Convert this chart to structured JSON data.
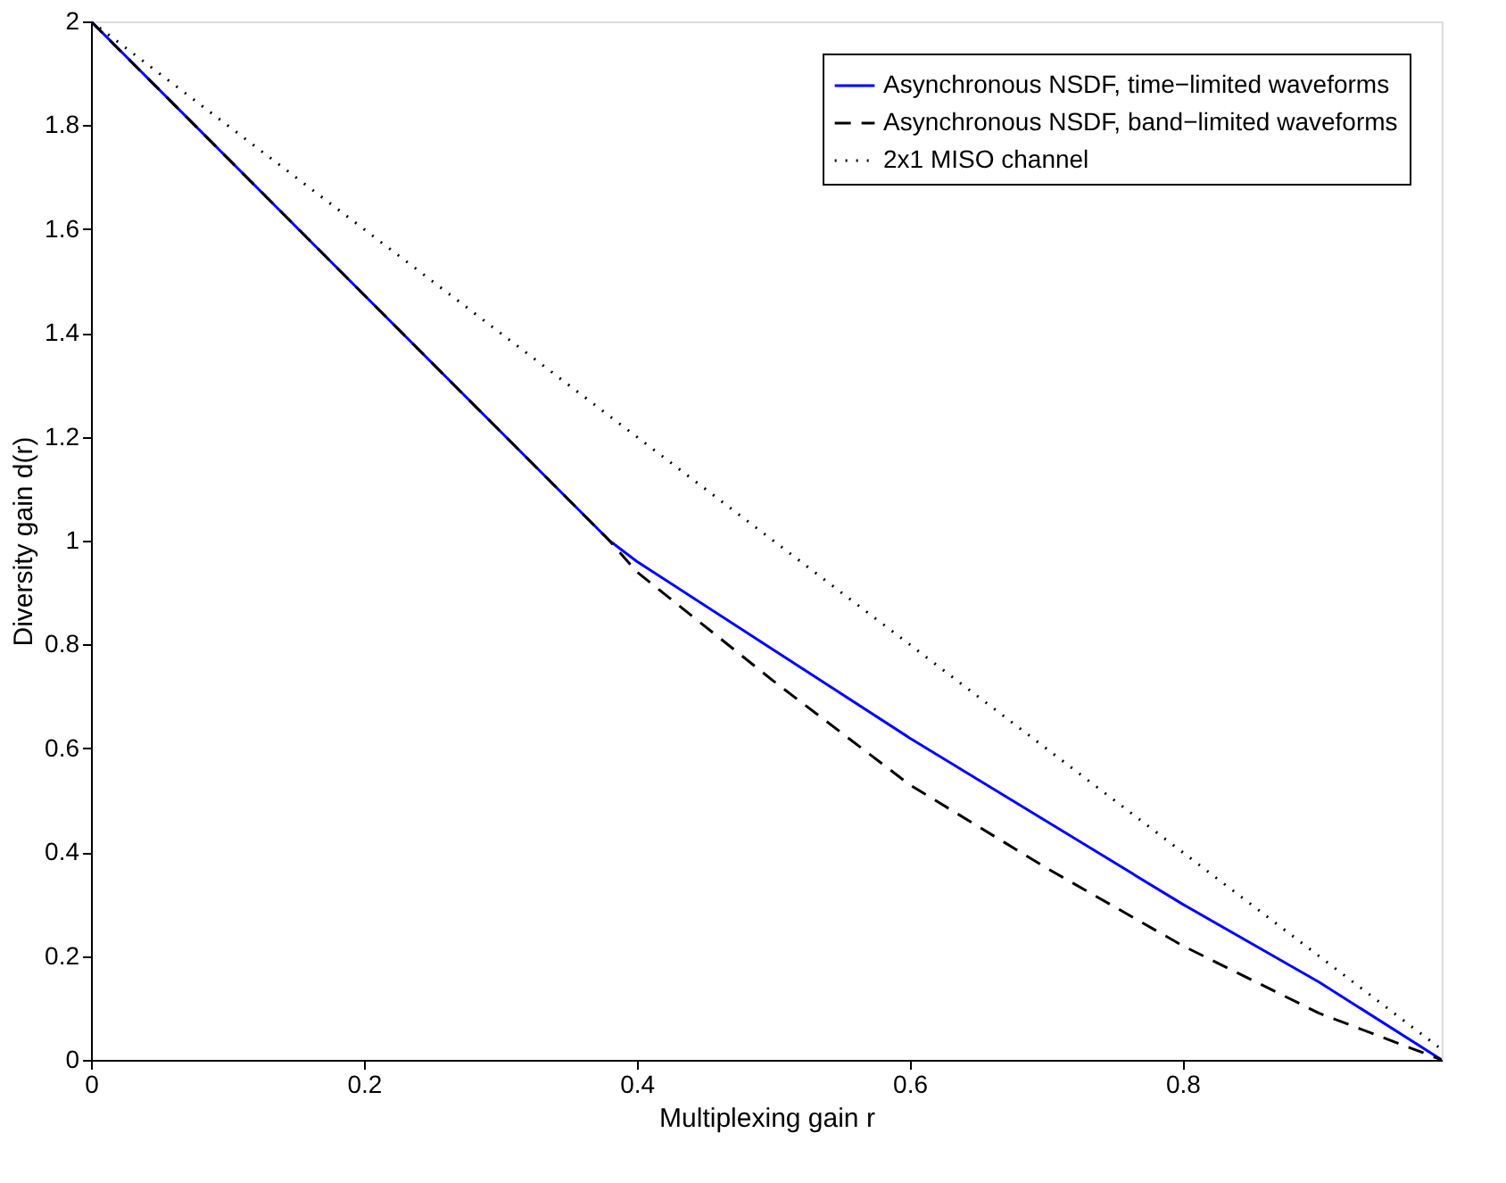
{
  "chart_data": {
    "type": "line",
    "xlabel": "Multiplexing gain r",
    "ylabel": "Diversity gain d(r)",
    "xlim": [
      0,
      0.99
    ],
    "ylim": [
      0,
      2
    ],
    "xticks": [
      0,
      0.2,
      0.4,
      0.6,
      0.8
    ],
    "yticks": [
      0,
      0.2,
      0.4,
      0.6,
      0.8,
      1,
      1.2,
      1.4,
      1.6,
      1.8,
      2
    ],
    "grid": false,
    "legend": "top right",
    "series": [
      {
        "name": "Asynchronous NSDF, time−limited waveforms",
        "color": "#0000ff",
        "line_style": "solid",
        "x": [
          0,
          0.38,
          0.4,
          0.5,
          0.6,
          0.7,
          0.8,
          0.9,
          0.99
        ],
        "values": [
          2,
          1,
          0.96,
          0.79,
          0.62,
          0.46,
          0.3,
          0.15,
          0
        ]
      },
      {
        "name": "Asynchronous NSDF, band−limited waveforms",
        "color": "#000000",
        "line_style": "dashed",
        "x": [
          0,
          0.38,
          0.4,
          0.5,
          0.6,
          0.7,
          0.8,
          0.9,
          0.99
        ],
        "values": [
          2,
          1,
          0.94,
          0.73,
          0.53,
          0.37,
          0.22,
          0.09,
          0
        ]
      },
      {
        "name": "2x1 MISO channel",
        "color": "#000000",
        "line_style": "dotted",
        "x": [
          0,
          0.99
        ],
        "values": [
          2,
          0.02
        ]
      }
    ]
  }
}
